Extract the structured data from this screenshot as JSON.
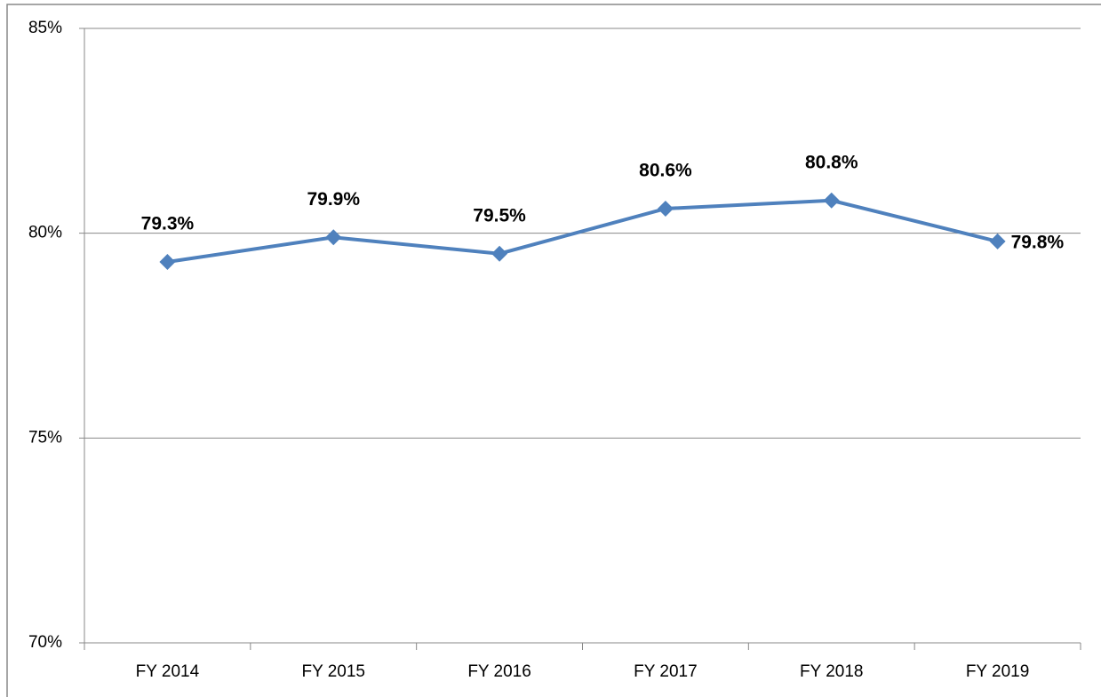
{
  "chart_data": {
    "type": "line",
    "categories": [
      "FY 2014",
      "FY 2015",
      "FY 2016",
      "FY 2017",
      "FY 2018",
      "FY 2019"
    ],
    "values": [
      79.3,
      79.9,
      79.5,
      80.6,
      80.8,
      79.8
    ],
    "value_labels": [
      "79.3%",
      "79.9%",
      "79.5%",
      "80.6%",
      "80.8%",
      "79.8%"
    ],
    "color": "#4f81bd",
    "ylim": [
      70,
      85
    ],
    "yticks": [
      {
        "value": 70,
        "label": "70%"
      },
      {
        "value": 75,
        "label": "75%"
      },
      {
        "value": 80,
        "label": "80%"
      },
      {
        "value": 85,
        "label": "85%"
      }
    ],
    "grid": true
  }
}
